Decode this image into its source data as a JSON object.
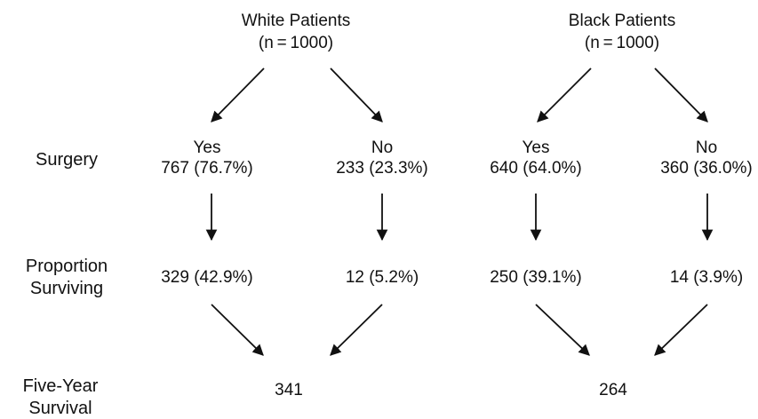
{
  "row_labels": {
    "surgery": "Surgery",
    "proportion_line1": "Proportion",
    "proportion_line2": "Surviving",
    "five_year_line1": "Five-Year",
    "five_year_line2": "Survival"
  },
  "groups": [
    {
      "title": "White Patients",
      "n": "(n = 1000)",
      "yes_label": "Yes",
      "yes_value": "767 (76.7%)",
      "no_label": "No",
      "no_value": "233 (23.3%)",
      "yes_surviving": "329 (42.9%)",
      "no_surviving": "12 (5.2%)",
      "five_year": "341"
    },
    {
      "title": "Black Patients",
      "n": "(n = 1000)",
      "yes_label": "Yes",
      "yes_value": "640 (64.0%)",
      "no_label": "No",
      "no_value": "360 (36.0%)",
      "yes_surviving": "250 (39.1%)",
      "no_surviving": "14 (3.9%)",
      "five_year": "264"
    }
  ],
  "colors": {
    "text": "#111111",
    "arrow": "#111111",
    "background": "#ffffff"
  }
}
